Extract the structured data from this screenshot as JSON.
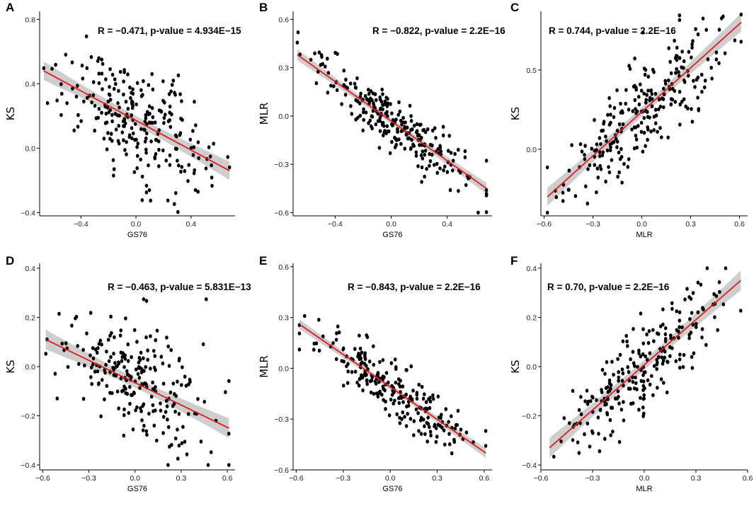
{
  "chart_data": [
    {
      "type": "scatter",
      "panel_label": "A",
      "annotation": "R = −0.471, p-value = 4.934E−15",
      "xlabel": "GS76",
      "ylabel": "KS",
      "xlim": [
        -0.7,
        0.72
      ],
      "ylim": [
        -0.42,
        0.85
      ],
      "xticks": [
        -0.4,
        0.0,
        0.4
      ],
      "xtick_labels": [
        "−0.4",
        "0.0",
        "0.4"
      ],
      "yticks": [
        -0.4,
        0.0,
        0.4,
        0.8
      ],
      "ytick_labels": [
        "−0.4",
        "0.0",
        "0.4",
        "0.8"
      ],
      "fit": {
        "x": [
          -0.67,
          0.68
        ],
        "y": [
          0.48,
          -0.14
        ],
        "se": 0.05
      },
      "n_points": 250,
      "noise": 0.17
    },
    {
      "type": "scatter",
      "panel_label": "B",
      "annotation": "R = −0.822, p-value = 2.2E−16",
      "xlabel": "GS76",
      "ylabel": "MLR",
      "xlim": [
        -0.7,
        0.72
      ],
      "ylim": [
        -0.62,
        0.65
      ],
      "xticks": [
        -0.4,
        0.0,
        0.4
      ],
      "xtick_labels": [
        "−0.4",
        "0.0",
        "0.4"
      ],
      "yticks": [
        -0.6,
        -0.3,
        0.0,
        0.3,
        0.6
      ],
      "ytick_labels": [
        "−0.6",
        "−0.3",
        "0.0",
        "0.3",
        "0.6"
      ],
      "fit": {
        "x": [
          -0.67,
          0.68
        ],
        "y": [
          0.38,
          -0.45
        ],
        "se": 0.03
      },
      "n_points": 250,
      "noise": 0.09
    },
    {
      "type": "scatter",
      "panel_label": "C",
      "annotation": "R = 0.744, p-value = 2.2E−16",
      "xlabel": "MLR",
      "ylabel": "KS",
      "xlim": [
        -0.62,
        0.65
      ],
      "ylim": [
        -0.42,
        0.87
      ],
      "xticks": [
        -0.6,
        -0.3,
        0.0,
        0.3,
        0.6
      ],
      "xtick_labels": [
        "−0.6",
        "−0.3",
        "0.0",
        "0.3",
        "0.6"
      ],
      "yticks": [
        0.0,
        0.5
      ],
      "ytick_labels": [
        "0.0",
        "0.5"
      ],
      "fit": {
        "x": [
          -0.58,
          0.61
        ],
        "y": [
          -0.3,
          0.8
        ],
        "se": 0.05
      },
      "n_points": 250,
      "noise": 0.15
    },
    {
      "type": "scatter",
      "panel_label": "D",
      "annotation": "R = −0.463, p-value = 5.831E−13",
      "xlabel": "GS76",
      "ylabel": "KS",
      "xlim": [
        -0.62,
        0.65
      ],
      "ylim": [
        -0.42,
        0.42
      ],
      "xticks": [
        -0.6,
        -0.3,
        0.0,
        0.3,
        0.6
      ],
      "xtick_labels": [
        "−0.6",
        "−0.3",
        "0.0",
        "0.3",
        "0.6"
      ],
      "yticks": [
        -0.4,
        -0.2,
        0.0,
        0.2,
        0.4
      ],
      "ytick_labels": [
        "−0.4",
        "−0.2",
        "0.0",
        "0.2",
        "0.4"
      ],
      "fit": {
        "x": [
          -0.58,
          0.61
        ],
        "y": [
          0.11,
          -0.25
        ],
        "se": 0.035
      },
      "n_points": 230,
      "noise": 0.12
    },
    {
      "type": "scatter",
      "panel_label": "E",
      "annotation": "R = −0.843, p-value = 2.2E−16",
      "xlabel": "GS76",
      "ylabel": "MLR",
      "xlim": [
        -0.62,
        0.65
      ],
      "ylim": [
        -0.6,
        0.62
      ],
      "xticks": [
        -0.6,
        -0.3,
        0.0,
        0.3,
        0.6
      ],
      "xtick_labels": [
        "−0.6",
        "−0.3",
        "0.0",
        "0.3",
        "0.6"
      ],
      "yticks": [
        -0.6,
        -0.3,
        0.0,
        0.3,
        0.6
      ],
      "ytick_labels": [
        "−0.6",
        "−0.3",
        "0.0",
        "0.3",
        "0.6"
      ],
      "fit": {
        "x": [
          -0.58,
          0.61
        ],
        "y": [
          0.26,
          -0.5
        ],
        "se": 0.025
      },
      "n_points": 230,
      "noise": 0.08
    },
    {
      "type": "scatter",
      "panel_label": "F",
      "annotation": "R = 0.70, p-value = 2.2E−16",
      "xlabel": "MLR",
      "ylabel": "KS",
      "xlim": [
        -0.6,
        0.6
      ],
      "ylim": [
        -0.42,
        0.42
      ],
      "xticks": [
        -0.6,
        -0.3,
        0.0,
        0.3,
        0.6
      ],
      "xtick_labels": [
        "−0.6",
        "−0.3",
        "0.0",
        "0.3",
        "0.6"
      ],
      "yticks": [
        -0.4,
        -0.2,
        0.0,
        0.2,
        0.4
      ],
      "ytick_labels": [
        "−0.4",
        "−0.2",
        "0.0",
        "0.2",
        "0.4"
      ],
      "fit": {
        "x": [
          -0.55,
          0.56
        ],
        "y": [
          -0.33,
          0.35
        ],
        "se": 0.035
      },
      "n_points": 230,
      "noise": 0.09
    }
  ],
  "colors": {
    "points": "#000000",
    "fit_line": "#e41a1c",
    "confidence_band": "#bdbdbd",
    "axis": "#000000"
  }
}
